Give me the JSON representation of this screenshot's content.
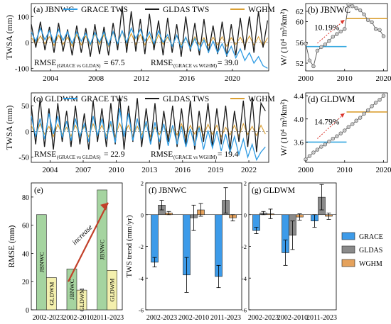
{
  "chart_data": [
    {
      "id": "a",
      "type": "line",
      "title": "(a) JBNWC",
      "ylabel": "TWSA (mm)",
      "ylim": [
        -110,
        150
      ],
      "xlim": [
        2002.3,
        2023.2
      ],
      "yticks": [
        -100,
        0,
        100
      ],
      "xticks": [
        2004,
        2008,
        2012,
        2016,
        2020
      ],
      "series": [
        {
          "name": "GRACE TWS",
          "color": "#2e9be3",
          "x": [
            2002.3,
            2002.7,
            2003.1,
            2003.5,
            2003.9,
            2004.3,
            2004.7,
            2005.1,
            2005.5,
            2005.9,
            2006.3,
            2006.7,
            2007.1,
            2007.5,
            2007.9,
            2008.3,
            2008.7,
            2009.1,
            2009.5,
            2009.9,
            2010.3,
            2010.7,
            2011.1,
            2011.5,
            2011.9,
            2012.3,
            2012.7,
            2013.1,
            2013.5,
            2013.9,
            2014.3,
            2014.7,
            2015.1,
            2015.5,
            2015.9,
            2016.3,
            2016.7,
            2017.1,
            2017.5,
            2017.9,
            2018.3,
            2018.7,
            2019.1,
            2019.5,
            2019.9,
            2020.3,
            2020.7,
            2021.1,
            2021.5,
            2021.9,
            2022.3,
            2022.7,
            2023.1
          ],
          "y": [
            40,
            5,
            55,
            10,
            45,
            0,
            50,
            8,
            42,
            -5,
            40,
            5,
            35,
            -8,
            38,
            0,
            40,
            -10,
            42,
            -5,
            45,
            0,
            55,
            15,
            50,
            5,
            40,
            -5,
            45,
            0,
            30,
            -15,
            28,
            -20,
            20,
            -25,
            15,
            -30,
            10,
            -38,
            5,
            -40,
            -5,
            -50,
            -15,
            -60,
            -25,
            -70,
            -40,
            -80,
            -55,
            -90,
            -100
          ]
        },
        {
          "name": "GLDAS TWS",
          "color": "#1a1a1a",
          "x": [
            2002.3,
            2002.7,
            2003.1,
            2003.5,
            2003.9,
            2004.3,
            2004.7,
            2005.1,
            2005.5,
            2005.9,
            2006.3,
            2006.7,
            2007.1,
            2007.5,
            2007.9,
            2008.3,
            2008.7,
            2009.1,
            2009.5,
            2009.9,
            2010.3,
            2010.7,
            2011.1,
            2011.5,
            2011.9,
            2012.3,
            2012.7,
            2013.1,
            2013.5,
            2013.9,
            2014.3,
            2014.7,
            2015.1,
            2015.5,
            2015.9,
            2016.3,
            2016.7,
            2017.1,
            2017.5,
            2017.9,
            2018.3,
            2018.7,
            2019.1,
            2019.5,
            2019.9,
            2020.3,
            2020.7,
            2021.1,
            2021.5,
            2021.9,
            2022.3,
            2022.7,
            2023.1
          ],
          "y": [
            70,
            -20,
            80,
            -30,
            60,
            -40,
            75,
            -35,
            50,
            -50,
            65,
            -40,
            55,
            -55,
            70,
            -45,
            60,
            -50,
            75,
            -30,
            140,
            -40,
            120,
            -35,
            90,
            -45,
            110,
            -30,
            85,
            -50,
            95,
            -40,
            70,
            -55,
            100,
            -35,
            75,
            -50,
            90,
            -40,
            65,
            -45,
            80,
            -55,
            70,
            -50,
            95,
            -30,
            100,
            -40,
            120,
            -20,
            85
          ]
        },
        {
          "name": "WGHM",
          "color": "#dba034",
          "x": [
            2002.3,
            2002.7,
            2003.1,
            2003.5,
            2003.9,
            2004.3,
            2004.7,
            2005.1,
            2005.5,
            2005.9,
            2006.3,
            2006.7,
            2007.1,
            2007.5,
            2007.9,
            2008.3,
            2008.7,
            2009.1,
            2009.5,
            2009.9,
            2010.3,
            2010.7,
            2011.1,
            2011.5,
            2011.9,
            2012.3,
            2012.7,
            2013.1,
            2013.5,
            2013.9,
            2014.3,
            2014.7,
            2015.1,
            2015.5,
            2015.9,
            2016.3,
            2016.7,
            2017.1,
            2017.5,
            2017.9,
            2018.3,
            2018.7,
            2019.1,
            2019.5,
            2019.9,
            2020.3,
            2020.7,
            2021.1,
            2021.5,
            2021.9,
            2022.3,
            2022.7,
            2023.1
          ],
          "y": [
            20,
            -10,
            25,
            -5,
            22,
            -12,
            28,
            -8,
            20,
            -15,
            30,
            -10,
            25,
            -12,
            35,
            -8,
            30,
            -15,
            40,
            -10,
            45,
            -12,
            35,
            -8,
            30,
            -10,
            25,
            -15,
            30,
            -8,
            20,
            -12,
            25,
            -10,
            20,
            -15,
            22,
            -8,
            18,
            -12,
            20,
            -10,
            22,
            -15,
            18,
            -8,
            20,
            -12,
            25,
            -10,
            22,
            -15,
            18
          ]
        }
      ],
      "reference_line": 0,
      "legend": [
        "GRACE TWS",
        "GLDAS TWS",
        "WGHM"
      ],
      "annotations": [
        {
          "text": "RMSE",
          "sub": "(GRACE vs GLDAS)",
          "value": "= 67.5",
          "color": "#000000"
        },
        {
          "text": "RMSE",
          "sub": "(GRACE vs WGHM)",
          "value": "= 39.0",
          "color": "#dba034"
        }
      ]
    },
    {
      "id": "b",
      "type": "line",
      "title": "(b) JBNWC",
      "ylabel": "W/ (10⁴ m³/km²)",
      "ylim": [
        50.5,
        63.5
      ],
      "xlim": [
        2000,
        2021
      ],
      "yticks": [
        52,
        56,
        60,
        62
      ],
      "xticks": [
        2000,
        2010,
        2020
      ],
      "x": [
        2000,
        2001,
        2002,
        2003,
        2004,
        2005,
        2006,
        2007,
        2008,
        2009,
        2010,
        2011,
        2012,
        2013,
        2014,
        2015,
        2016,
        2017,
        2018,
        2019,
        2020
      ],
      "y": [
        55.8,
        52.5,
        51.4,
        54.4,
        55.1,
        55.6,
        56.3,
        57.1,
        57.6,
        58.1,
        58.6,
        63.3,
        63.0,
        62.6,
        62.2,
        61.4,
        60.3,
        59.9,
        58.6,
        58.4,
        57.2
      ],
      "mean_lines": [
        {
          "x": [
            2000,
            2010.5
          ],
          "y": 55.2,
          "color": "#36a8e0"
        },
        {
          "x": [
            2010.5,
            2021
          ],
          "y": 60.6,
          "color": "#dba034"
        }
      ],
      "change_label": "10.19%"
    },
    {
      "id": "c",
      "type": "line",
      "title": "(c) GLDWM",
      "ylabel": "TWSA (mm)",
      "ylim": [
        -60,
        75
      ],
      "xlim": [
        2002.3,
        2023.8
      ],
      "yticks": [
        -50,
        0,
        50
      ],
      "xticks": [
        2004,
        2007,
        2010,
        2013,
        2016,
        2019,
        2022
      ],
      "series": [
        {
          "name": "GRACE TWS",
          "color": "#2e9be3",
          "x": [
            2002.3,
            2002.7,
            2003.1,
            2003.5,
            2003.9,
            2004.3,
            2004.7,
            2005.1,
            2005.5,
            2005.9,
            2006.3,
            2006.7,
            2007.1,
            2007.5,
            2007.9,
            2008.3,
            2008.7,
            2009.1,
            2009.5,
            2009.9,
            2010.3,
            2010.7,
            2011.1,
            2011.5,
            2011.9,
            2012.3,
            2012.7,
            2013.1,
            2013.5,
            2013.9,
            2014.3,
            2014.7,
            2015.1,
            2015.5,
            2015.9,
            2016.3,
            2016.7,
            2017.1,
            2017.5,
            2017.9,
            2018.3,
            2018.7,
            2019.1,
            2019.5,
            2019.9,
            2020.3,
            2020.7,
            2021.1,
            2021.5,
            2021.9,
            2022.3,
            2022.7,
            2023.1,
            2023.5
          ],
          "y": [
            30,
            -10,
            25,
            -15,
            35,
            -5,
            30,
            -12,
            20,
            -18,
            25,
            -10,
            15,
            -20,
            30,
            -8,
            25,
            -15,
            20,
            -22,
            45,
            -10,
            35,
            -18,
            25,
            -15,
            20,
            -25,
            18,
            -20,
            15,
            -28,
            12,
            -25,
            10,
            -30,
            5,
            -28,
            8,
            -35,
            2,
            -32,
            0,
            -38,
            -5,
            -40,
            -10,
            -45,
            -15,
            -50,
            -25,
            -55,
            -40,
            -30
          ]
        },
        {
          "name": "GLDAS TWS",
          "color": "#1a1a1a",
          "x": [
            2002.3,
            2002.7,
            2003.1,
            2003.5,
            2003.9,
            2004.3,
            2004.7,
            2005.1,
            2005.5,
            2005.9,
            2006.3,
            2006.7,
            2007.1,
            2007.5,
            2007.9,
            2008.3,
            2008.7,
            2009.1,
            2009.5,
            2009.9,
            2010.3,
            2010.7,
            2011.1,
            2011.5,
            2011.9,
            2012.3,
            2012.7,
            2013.1,
            2013.5,
            2013.9,
            2014.3,
            2014.7,
            2015.1,
            2015.5,
            2015.9,
            2016.3,
            2016.7,
            2017.1,
            2017.5,
            2017.9,
            2018.3,
            2018.7,
            2019.1,
            2019.5,
            2019.9,
            2020.3,
            2020.7,
            2021.1,
            2021.5,
            2021.9,
            2022.3,
            2022.7,
            2023.1,
            2023.5
          ],
          "y": [
            50,
            -25,
            65,
            -30,
            45,
            -35,
            55,
            -20,
            40,
            -30,
            50,
            -25,
            35,
            -35,
            60,
            -20,
            45,
            -30,
            55,
            -25,
            70,
            -35,
            50,
            -20,
            65,
            -30,
            45,
            -25,
            55,
            -35,
            40,
            -20,
            50,
            -30,
            45,
            -25,
            60,
            -35,
            40,
            -20,
            55,
            -30,
            45,
            -25,
            50,
            -35,
            40,
            -20,
            60,
            -30,
            65,
            -40,
            55,
            40
          ]
        },
        {
          "name": "WGHM",
          "color": "#dba034",
          "x": [
            2002.3,
            2002.7,
            2003.1,
            2003.5,
            2003.9,
            2004.3,
            2004.7,
            2005.1,
            2005.5,
            2005.9,
            2006.3,
            2006.7,
            2007.1,
            2007.5,
            2007.9,
            2008.3,
            2008.7,
            2009.1,
            2009.5,
            2009.9,
            2010.3,
            2010.7,
            2011.1,
            2011.5,
            2011.9,
            2012.3,
            2012.7,
            2013.1,
            2013.5,
            2013.9,
            2014.3,
            2014.7,
            2015.1,
            2015.5,
            2015.9,
            2016.3,
            2016.7,
            2017.1,
            2017.5,
            2017.9,
            2018.3,
            2018.7,
            2019.1,
            2019.5,
            2019.9,
            2020.3,
            2020.7,
            2021.1,
            2021.5,
            2021.9,
            2022.3,
            2022.7,
            2023.1,
            2023.5
          ],
          "y": [
            12,
            -8,
            15,
            -5,
            10,
            -10,
            14,
            -6,
            8,
            -9,
            12,
            -7,
            10,
            -10,
            15,
            -5,
            12,
            -8,
            14,
            -10,
            16,
            -6,
            12,
            -9,
            10,
            -7,
            14,
            -10,
            8,
            -6,
            12,
            -9,
            10,
            -7,
            15,
            -10,
            12,
            -5,
            10,
            -8,
            14,
            -6,
            12,
            -10,
            8,
            -7,
            12,
            -9,
            15,
            -6,
            10,
            -8,
            12,
            -5
          ]
        }
      ],
      "reference_line": 0,
      "legend": [
        "GRACE TWS",
        "GLDAS TWS",
        "WGHM"
      ],
      "annotations": [
        {
          "text": "RMSE",
          "sub": "(GRACE vs GLDAS)",
          "value": "= 22.9",
          "color": "#000000"
        },
        {
          "text": "RMSE",
          "sub": "(GRACE vs WGHM)",
          "value": "= 19.4",
          "color": "#dba034"
        }
      ]
    },
    {
      "id": "d",
      "type": "line",
      "title": "(d) GLDWM",
      "ylabel": "W/ (10⁴ m³/km²)",
      "ylim": [
        3.25,
        4.45
      ],
      "xlim": [
        2000,
        2021
      ],
      "yticks": [
        3.2,
        3.6,
        4.0,
        4.4
      ],
      "xticks": [
        2000,
        2010,
        2020
      ],
      "x": [
        2000,
        2001,
        2002,
        2003,
        2004,
        2005,
        2006,
        2007,
        2008,
        2009,
        2010,
        2011,
        2012,
        2013,
        2014,
        2015,
        2016,
        2017,
        2018,
        2019,
        2020
      ],
      "y": [
        3.3,
        3.36,
        3.42,
        3.47,
        3.52,
        3.56,
        3.61,
        3.66,
        3.7,
        3.75,
        3.8,
        3.86,
        3.91,
        3.97,
        4.02,
        4.09,
        4.15,
        4.22,
        4.28,
        4.33,
        4.4
      ],
      "mean_lines": [
        {
          "x": [
            2000,
            2010.5
          ],
          "y": 3.6,
          "color": "#36a8e0"
        },
        {
          "x": [
            2010.5,
            2021
          ],
          "y": 4.12,
          "color": "#dba034"
        }
      ],
      "change_label": "14.79%"
    },
    {
      "id": "e",
      "type": "bar",
      "title": "(e)",
      "ylabel": "RMSE (mm)",
      "ylim": [
        0,
        90
      ],
      "yticks": [
        0,
        20,
        40,
        60,
        80
      ],
      "categories": [
        "2002-2023",
        "2002-2010",
        "2011-2023"
      ],
      "series": [
        {
          "label": "JBNWC",
          "color": "#a5d4a0",
          "values": [
            67.5,
            29,
            85
          ]
        },
        {
          "label": "GLDWM",
          "color": "#f4f0ae",
          "values": [
            22.9,
            14,
            28
          ]
        }
      ],
      "arrow_label": "increase"
    },
    {
      "id": "f",
      "type": "bar",
      "title": "(f) JBNWC",
      "ylabel": "TWS trend (mm/yr)",
      "ylim": [
        -6,
        2
      ],
      "yticks": [
        -6,
        -4,
        -2,
        0,
        2
      ],
      "categories": [
        "2002-2023",
        "2002-2010",
        "2011-2023"
      ],
      "series": [
        {
          "name": "GRACE",
          "color": "#3d9be9",
          "values": [
            -3.0,
            -3.8,
            -3.9
          ],
          "err": [
            0.3,
            1.1,
            0.7
          ]
        },
        {
          "name": "GLDAS",
          "color": "#8a8a8a",
          "values": [
            0.6,
            -0.2,
            0.9
          ],
          "err": [
            0.3,
            0.8,
            0.8
          ]
        },
        {
          "name": "WGHM",
          "color": "#e5a25c",
          "values": [
            0.1,
            0.3,
            -0.2
          ],
          "err": [
            0.1,
            0.4,
            0.2
          ]
        }
      ]
    },
    {
      "id": "g",
      "type": "bar",
      "title": "(g) GLDWM",
      "ylim": [
        -6,
        2
      ],
      "yticks": [
        -6,
        -4,
        -2,
        0,
        2
      ],
      "categories": [
        "2002-2023",
        "2002-2010",
        "2011-2023"
      ],
      "series": [
        {
          "name": "GRACE",
          "color": "#3d9be9",
          "values": [
            -1.0,
            -2.4,
            -0.4
          ],
          "err": [
            0.2,
            0.8,
            0.4
          ]
        },
        {
          "name": "GLDAS",
          "color": "#8a8a8a",
          "values": [
            0.1,
            -1.3,
            1.1
          ],
          "err": [
            0.1,
            0.9,
            0.8
          ]
        },
        {
          "name": "WGHM",
          "color": "#e5a25c",
          "values": [
            0.05,
            -0.15,
            -0.1
          ],
          "err": [
            0.3,
            0.2,
            0.2
          ]
        }
      ]
    }
  ],
  "legend_fg": [
    {
      "name": "GRACE",
      "color": "#3d9be9"
    },
    {
      "name": "GLDAS",
      "color": "#8a8a8a"
    },
    {
      "name": "WGHM",
      "color": "#e5a25c"
    }
  ]
}
